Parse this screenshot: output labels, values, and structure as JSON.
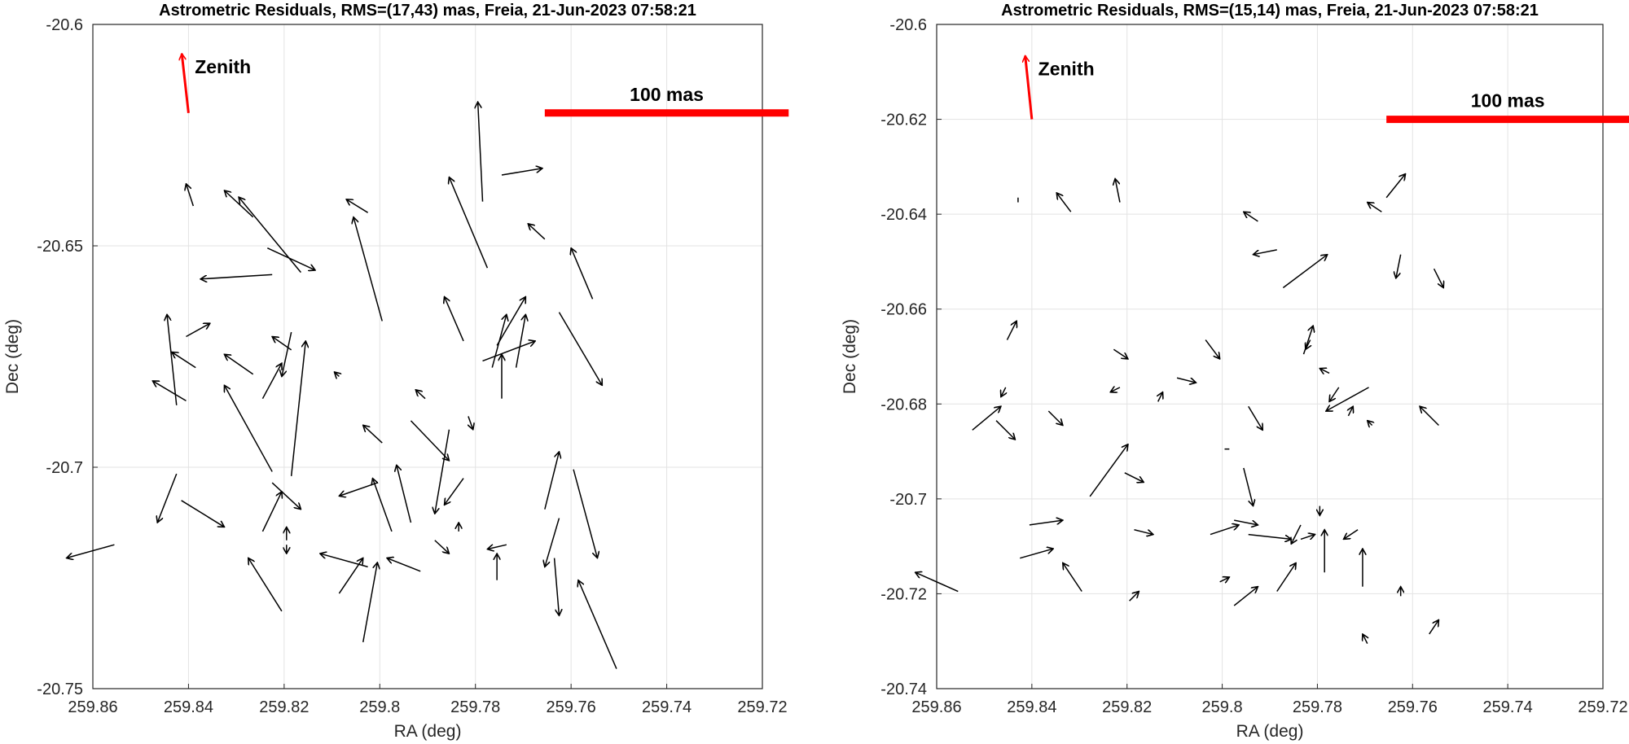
{
  "colors": {
    "arrow": "#000000",
    "zenith": "#ff0000",
    "scalebar": "#ff0000",
    "grid": "#e3e3e3"
  },
  "chart_data": [
    {
      "type": "scatter",
      "title": "Astrometric Residuals, RMS=(17,43) mas, Freia, 21-Jun-2023 07:58:21",
      "xlabel": "RA (deg)",
      "ylabel": "Dec (deg)",
      "xlim": [
        259.86,
        259.72
      ],
      "ylim": [
        -20.75,
        -20.6
      ],
      "x_reversed": true,
      "grid": true,
      "xticks": [
        259.86,
        259.84,
        259.82,
        259.8,
        259.78,
        259.76,
        259.74,
        259.72
      ],
      "xtick_labels": [
        "259.86",
        "259.84",
        "259.82",
        "259.8",
        "259.78",
        "259.76",
        "259.74",
        "259.72"
      ],
      "yticks": [
        -20.6,
        -20.65,
        -20.7,
        -20.75
      ],
      "ytick_labels": [
        "-20.6",
        "-20.65",
        "-20.7",
        "-20.75"
      ],
      "zenith": {
        "label": "Zenith",
        "x1": 259.84,
        "y1": -20.62,
        "x2": 259.8414,
        "y2": -20.6066
      },
      "scale_bar": {
        "label": "100 mas",
        "x1": 259.7655,
        "x2": 259.7145,
        "y": -20.62
      },
      "arrows": [
        [
          259.839,
          -20.641,
          259.8405,
          -20.636
        ],
        [
          259.8165,
          -20.656,
          259.8295,
          -20.639
        ],
        [
          259.8265,
          -20.6435,
          259.8325,
          -20.6375
        ],
        [
          259.8025,
          -20.6425,
          259.807,
          -20.6395
        ],
        [
          259.8225,
          -20.6565,
          259.8375,
          -20.6575
        ],
        [
          259.7785,
          -20.64,
          259.7795,
          -20.6175
        ],
        [
          259.7775,
          -20.655,
          259.7855,
          -20.6345
        ],
        [
          259.7745,
          -20.634,
          259.766,
          -20.6325
        ],
        [
          259.7655,
          -20.6485,
          259.769,
          -20.645
        ],
        [
          259.7555,
          -20.662,
          259.76,
          -20.6505
        ],
        [
          259.8235,
          -20.6505,
          259.8135,
          -20.6555
        ],
        [
          259.7995,
          -20.667,
          259.8055,
          -20.6435
        ],
        [
          259.8385,
          -20.6775,
          259.8435,
          -20.674
        ],
        [
          259.8405,
          -20.6705,
          259.8355,
          -20.6675
        ],
        [
          259.8185,
          -20.6735,
          259.8225,
          -20.6705
        ],
        [
          259.7785,
          -20.676,
          259.7675,
          -20.6715
        ],
        [
          259.7765,
          -20.6775,
          259.7735,
          -20.6655
        ],
        [
          259.7825,
          -20.6715,
          259.7865,
          -20.6615
        ],
        [
          259.7715,
          -20.6775,
          259.7695,
          -20.6655
        ],
        [
          259.7755,
          -20.6725,
          259.7695,
          -20.6615
        ],
        [
          259.7625,
          -20.665,
          259.7535,
          -20.6815
        ],
        [
          259.8405,
          -20.685,
          259.8475,
          -20.6805
        ],
        [
          259.8425,
          -20.686,
          259.8445,
          -20.6655
        ],
        [
          259.8265,
          -20.679,
          259.8325,
          -20.6745
        ],
        [
          259.8245,
          -20.6845,
          259.8205,
          -20.6765
        ],
        [
          259.8185,
          -20.702,
          259.8155,
          -20.6715
        ],
        [
          259.8185,
          -20.6695,
          259.8205,
          -20.6795
        ],
        [
          259.8225,
          -20.701,
          259.8325,
          -20.6815
        ],
        [
          259.8085,
          -20.6795,
          259.8095,
          -20.6785
        ],
        [
          259.7905,
          -20.6845,
          259.7925,
          -20.6825
        ],
        [
          259.7815,
          -20.6885,
          259.7805,
          -20.6915
        ],
        [
          259.7745,
          -20.6845,
          259.7745,
          -20.6745
        ],
        [
          259.7655,
          -20.7095,
          259.7625,
          -20.6965
        ],
        [
          259.7595,
          -20.7005,
          259.7545,
          -20.7205
        ],
        [
          259.8425,
          -20.7015,
          259.8465,
          -20.7125
        ],
        [
          259.8415,
          -20.7075,
          259.8325,
          -20.7135
        ],
        [
          259.8225,
          -20.7035,
          259.8165,
          -20.7095
        ],
        [
          259.8195,
          -20.7165,
          259.8195,
          -20.7135
        ],
        [
          259.8245,
          -20.7145,
          259.8205,
          -20.7055
        ],
        [
          259.8005,
          -20.7035,
          259.8085,
          -20.7065
        ],
        [
          259.7995,
          -20.6945,
          259.8035,
          -20.6905
        ],
        [
          259.7935,
          -20.7125,
          259.7965,
          -20.6995
        ],
        [
          259.7975,
          -20.7145,
          259.8015,
          -20.7025
        ],
        [
          259.7935,
          -20.6895,
          259.7855,
          -20.6985
        ],
        [
          259.7855,
          -20.6915,
          259.7885,
          -20.7105
        ],
        [
          259.7835,
          -20.7145,
          259.7835,
          -20.7125
        ],
        [
          259.7825,
          -20.7025,
          259.7865,
          -20.7085
        ],
        [
          259.7695,
          -20.7095,
          259.7695,
          -20.7095
        ],
        [
          259.7625,
          -20.7115,
          259.7655,
          -20.7225
        ],
        [
          259.7755,
          -20.7255,
          259.7755,
          -20.7195
        ],
        [
          259.7635,
          -20.7205,
          259.7625,
          -20.7335
        ],
        [
          259.8195,
          -20.7175,
          259.8195,
          -20.7195
        ],
        [
          259.8205,
          -20.7325,
          259.8275,
          -20.7205
        ],
        [
          259.8085,
          -20.7285,
          259.8035,
          -20.7205
        ],
        [
          259.8035,
          -20.7395,
          259.8005,
          -20.7215
        ],
        [
          259.8025,
          -20.7225,
          259.8125,
          -20.7195
        ],
        [
          259.7915,
          -20.7235,
          259.7985,
          -20.7205
        ],
        [
          259.7885,
          -20.7165,
          259.7855,
          -20.7195
        ],
        [
          259.7735,
          -20.7175,
          259.7775,
          -20.7185
        ],
        [
          259.7505,
          -20.7455,
          259.7585,
          -20.7255
        ],
        [
          259.8555,
          -20.7175,
          259.8655,
          -20.7205
        ]
      ]
    },
    {
      "type": "scatter",
      "title": "Astrometric Residuals, RMS=(15,14) mas, Freia, 21-Jun-2023 07:58:21",
      "xlabel": "RA (deg)",
      "ylabel": "Dec (deg)",
      "xlim": [
        259.86,
        259.72
      ],
      "ylim": [
        -20.74,
        -20.6
      ],
      "x_reversed": true,
      "grid": true,
      "xticks": [
        259.86,
        259.84,
        259.82,
        259.8,
        259.78,
        259.76,
        259.74,
        259.72
      ],
      "xtick_labels": [
        "259.86",
        "259.84",
        "259.82",
        "259.8",
        "259.78",
        "259.76",
        "259.74",
        "259.72"
      ],
      "yticks": [
        -20.6,
        -20.62,
        -20.64,
        -20.66,
        -20.68,
        -20.7,
        -20.72,
        -20.74
      ],
      "ytick_labels": [
        "-20.6",
        "-20.62",
        "-20.64",
        "-20.66",
        "-20.68",
        "-20.7",
        "-20.72",
        "-20.74"
      ],
      "zenith": {
        "label": "Zenith",
        "x1": 259.84,
        "y1": -20.62,
        "x2": 259.8414,
        "y2": -20.6066
      },
      "scale_bar": {
        "label": "100 mas",
        "x1": 259.7655,
        "x2": 259.7145,
        "y": -20.62
      },
      "arrows": [
        [
          259.8429,
          -20.6375,
          259.8429,
          -20.6365
        ],
        [
          259.8318,
          -20.6395,
          259.8348,
          -20.6355
        ],
        [
          259.8215,
          -20.6375,
          259.8225,
          -20.6325
        ],
        [
          259.7925,
          -20.6415,
          259.7955,
          -20.6395
        ],
        [
          259.7665,
          -20.6395,
          259.7695,
          -20.6375
        ],
        [
          259.7655,
          -20.6365,
          259.7615,
          -20.6315
        ],
        [
          259.7885,
          -20.6475,
          259.7935,
          -20.6485
        ],
        [
          259.7872,
          -20.6555,
          259.7779,
          -20.6485
        ],
        [
          259.7625,
          -20.6485,
          259.7635,
          -20.6535
        ],
        [
          259.7555,
          -20.6515,
          259.7535,
          -20.6555
        ],
        [
          259.8452,
          -20.6665,
          259.8432,
          -20.6625
        ],
        [
          259.8228,
          -20.6685,
          259.8198,
          -20.6705
        ],
        [
          259.8035,
          -20.6665,
          259.8005,
          -20.6705
        ],
        [
          259.7815,
          -20.6665,
          259.7825,
          -20.6685
        ],
        [
          259.7829,
          -20.6695,
          259.7809,
          -20.6635
        ],
        [
          259.8455,
          -20.6765,
          259.8465,
          -20.6785
        ],
        [
          259.8215,
          -20.6765,
          259.8235,
          -20.6775
        ],
        [
          259.8135,
          -20.6795,
          259.8125,
          -20.6775
        ],
        [
          259.8095,
          -20.6745,
          259.8055,
          -20.6755
        ],
        [
          259.7775,
          -20.6735,
          259.7795,
          -20.6725
        ],
        [
          259.7755,
          -20.6765,
          259.7775,
          -20.6795
        ],
        [
          259.7692,
          -20.6765,
          259.7782,
          -20.6815
        ],
        [
          259.7735,
          -20.6825,
          259.7725,
          -20.6805
        ],
        [
          259.7685,
          -20.6845,
          259.7695,
          -20.6835
        ],
        [
          259.7715,
          -20.6715,
          259.7715,
          -20.6715
        ],
        [
          259.7545,
          -20.6845,
          259.7585,
          -20.6805
        ],
        [
          259.8525,
          -20.6855,
          259.8465,
          -20.6805
        ],
        [
          259.8475,
          -20.6835,
          259.8435,
          -20.6875
        ],
        [
          259.8365,
          -20.6815,
          259.8335,
          -20.6845
        ],
        [
          259.8278,
          -20.6995,
          259.8198,
          -20.6885
        ],
        [
          259.7985,
          -20.6895,
          259.7995,
          -20.6895
        ],
        [
          259.7945,
          -20.6805,
          259.7915,
          -20.6855
        ],
        [
          259.8205,
          -20.6945,
          259.8165,
          -20.6965
        ],
        [
          259.7955,
          -20.6935,
          259.7935,
          -20.7015
        ],
        [
          259.7835,
          -20.7055,
          259.7855,
          -20.7095
        ],
        [
          259.7795,
          -20.7015,
          259.7795,
          -20.7035
        ],
        [
          259.7715,
          -20.7045,
          259.7715,
          -20.7045
        ],
        [
          259.8405,
          -20.7055,
          259.8335,
          -20.7045
        ],
        [
          259.8185,
          -20.7065,
          259.8145,
          -20.7075
        ],
        [
          259.8025,
          -20.7075,
          259.7965,
          -20.7055
        ],
        [
          259.7975,
          -20.7045,
          259.7925,
          -20.7055
        ],
        [
          259.7945,
          -20.7075,
          259.7855,
          -20.7085
        ],
        [
          259.7835,
          -20.7085,
          259.7805,
          -20.7075
        ],
        [
          259.7785,
          -20.7155,
          259.7785,
          -20.7065
        ],
        [
          259.7715,
          -20.7065,
          259.7745,
          -20.7085
        ],
        [
          259.7705,
          -20.7185,
          259.7705,
          -20.7105
        ],
        [
          259.8425,
          -20.7125,
          259.8355,
          -20.7105
        ],
        [
          259.8295,
          -20.7195,
          259.8335,
          -20.7135
        ],
        [
          259.8005,
          -20.7175,
          259.7985,
          -20.7165
        ],
        [
          259.7975,
          -20.7225,
          259.7925,
          -20.7185
        ],
        [
          259.7885,
          -20.7195,
          259.7845,
          -20.7135
        ],
        [
          259.7625,
          -20.7205,
          259.7625,
          -20.7185
        ],
        [
          259.8195,
          -20.7215,
          259.8175,
          -20.7195
        ],
        [
          259.8165,
          -20.7245,
          259.8165,
          -20.7245
        ],
        [
          259.7695,
          -20.7305,
          259.7705,
          -20.7285
        ],
        [
          259.7565,
          -20.7285,
          259.7545,
          -20.7255
        ],
        [
          259.8555,
          -20.7195,
          259.8645,
          -20.7155
        ]
      ]
    }
  ]
}
